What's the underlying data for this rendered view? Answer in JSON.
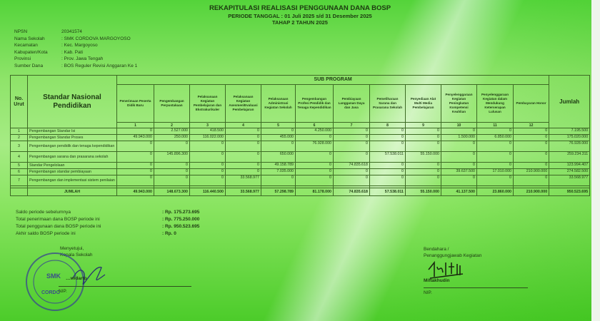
{
  "header": {
    "title": "REKAPITULASI REALISASI PENGGUNAAN DANA BOSP",
    "period": "PERIODE TANGGAL : 01 Juli 2025 s/d 31 Desember 2025",
    "stage": "TAHAP 2 TAHUN 2025"
  },
  "info": [
    {
      "label": "NPSN",
      "value": "20341574"
    },
    {
      "label": "Nama Sekolah",
      "value": ": SMK CORDOVA MARGOYOSO"
    },
    {
      "label": "Kecamatan",
      "value": ": Kec. Margoyoso"
    },
    {
      "label": "Kabupaten/Kota",
      "value": ": Kab. Pati"
    },
    {
      "label": "Provinsi",
      "value": ": Prov. Jawa Tengah"
    },
    {
      "label": "Sumber Dana",
      "value": ": BOS Reguler Revisi Anggaran Ke 1"
    }
  ],
  "table": {
    "no_header": "No. Urut",
    "standar_header": "Standar Nasional Pendidikan",
    "group_header": "SUB PROGRAM",
    "total_header": "Jumlah",
    "columns": [
      {
        "label": "Penerimaan Peserta Didik Baru",
        "num": "1"
      },
      {
        "label": "Pengembangan Perpustakaan",
        "num": "2"
      },
      {
        "label": "Pelaksanaan Kegiatan Pembelajaran dan Ekstrakurikuler",
        "num": "3"
      },
      {
        "label": "Pelaksanaan Kegiatan Asesmen/Evaluasi Pembelajaran",
        "num": "4"
      },
      {
        "label": "Pelaksanaan Administrasi Kegiatan Sekolah",
        "num": "5"
      },
      {
        "label": "Pengembangan Profesi Pendidik dan Tenaga Kependidikan",
        "num": "6"
      },
      {
        "label": "Pembiayaan Langganan Daya dan Jasa",
        "num": "7"
      },
      {
        "label": "Pemeliharaan Sarana dan Prasarana Sekolah",
        "num": "8"
      },
      {
        "label": "Penyediaan Alat Multi Media Pembelajaran",
        "num": "9"
      },
      {
        "label": "Penyelenggaraan Kegiatan Peningkatan Kompetensi Keahlian",
        "num": "10"
      },
      {
        "label": "Penyelenggaraan Kegiatan dalam Mendukung Keterserapan Lulusan",
        "num": "11"
      },
      {
        "label": "Pembayaran Honor",
        "num": "12"
      }
    ],
    "rows": [
      {
        "no": "1",
        "name": "Pengembangan Standar Isi",
        "values": [
          "0",
          "2.527.000",
          "418.500",
          "0",
          "0",
          "4.250.000",
          "0",
          "0",
          "0",
          "0",
          "0",
          "0"
        ],
        "total": "7.195.500"
      },
      {
        "no": "2",
        "name": "Pengembangan Standar Proses",
        "values": [
          "49.943.000",
          "250.000",
          "116.022.000",
          "0",
          "455.000",
          "0",
          "0",
          "0",
          "0",
          "1.500.000",
          "6.850.000",
          "0"
        ],
        "total": "175.020.000"
      },
      {
        "no": "3",
        "name": "Pengembangan pendidik dan tenaga kependidikan",
        "values": [
          "0",
          "0",
          "0",
          "0",
          "0",
          "76.928.000",
          "0",
          "0",
          "0",
          "0",
          "0",
          "0"
        ],
        "total": "76.928.000"
      },
      {
        "no": "4",
        "name": "Pengembangan sarana dan prasarana sekolah",
        "values": [
          "0",
          "145.896.300",
          "0",
          "0",
          "650.000",
          "0",
          "0",
          "57.538.011",
          "55.150.000",
          "0",
          "0",
          "0"
        ],
        "total": "259.234.311"
      },
      {
        "no": "5",
        "name": "Standar Pengelolaan",
        "values": [
          "0",
          "0",
          "0",
          "0",
          "49.158.789",
          "0",
          "74.835.618",
          "0",
          "0",
          "0",
          "0",
          "0"
        ],
        "total": "123.994.407"
      },
      {
        "no": "6",
        "name": "Pengembangan standar pembiayaan",
        "values": [
          "0",
          "0",
          "0",
          "0",
          "7.035.000",
          "0",
          "0",
          "0",
          "0",
          "39.637.500",
          "17.010.000",
          "210.900.000"
        ],
        "total": "274.582.500"
      },
      {
        "no": "7",
        "name": "Pengembangan dan implementasi sistem penilaian",
        "values": [
          "0",
          "0",
          "0",
          "33.568.977",
          "0",
          "0",
          "0",
          "0",
          "0",
          "0",
          "0",
          "0"
        ],
        "total": "33.568.977"
      }
    ],
    "total_row": {
      "label": "JUMLAH",
      "values": [
        "49.943.000",
        "148.673.300",
        "116.440.500",
        "33.568.977",
        "57.298.789",
        "81.178.000",
        "74.835.618",
        "57.538.011",
        "55.150.000",
        "41.137.500",
        "23.860.000",
        "210.900.000"
      ],
      "total": "950.523.695"
    }
  },
  "summary": [
    {
      "label": "Saldo periode sebelumnya",
      "value": ": Rp.  175.273.695"
    },
    {
      "label": "Total penerimaan dana BOSP periode ini",
      "value": ": Rp.  775.250.000"
    },
    {
      "label": "Total penggunaan dana BOSP periode ini",
      "value": ": Rp.  950.523.695"
    },
    {
      "label": "Akhir saldo BOSP periode ini",
      "value": ": Rp.   0"
    }
  ],
  "sign_left": {
    "line1": "Menyetujui,",
    "line2": "Kepala Sekolah",
    "name": "…widarto",
    "nip": "NIP."
  },
  "sign_right": {
    "line1": "Bendahara /",
    "line2": "Penanggungjawab Kegiatan",
    "name": "Miftakhudin",
    "nip": "NIP."
  },
  "stamp": {
    "text": "SMK",
    "ring": "YAYASAN AL ZAH…",
    "bottom": "CORDOVA"
  },
  "colors": {
    "background": "#7ee05a",
    "ink": "#1d3a12",
    "border": "#3d6a24"
  }
}
